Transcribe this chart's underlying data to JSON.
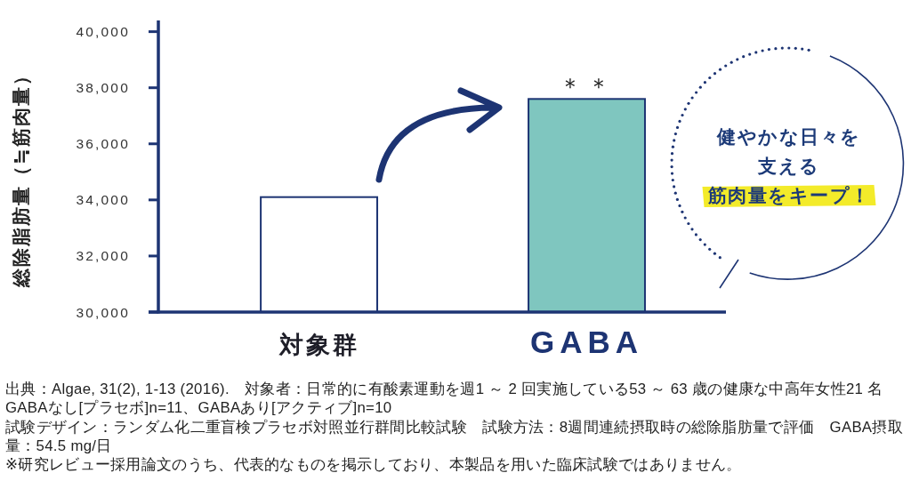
{
  "chart_data": {
    "type": "bar",
    "ylabel": "総除脂肪量（≒筋肉量）",
    "categories": [
      "対象群",
      "GABA"
    ],
    "values": [
      34100,
      37600
    ],
    "colors": [
      "#ffffff",
      "#7fc6bf"
    ],
    "ylim": [
      30000,
      40400
    ],
    "yticks": [
      {
        "value": 30000,
        "label": "30,000"
      },
      {
        "value": 32000,
        "label": "32,000"
      },
      {
        "value": 34000,
        "label": "34,000"
      },
      {
        "value": 36000,
        "label": "36,000"
      },
      {
        "value": 38000,
        "label": "38,000"
      },
      {
        "value": 40000,
        "label": "40,000"
      }
    ],
    "annotations": [
      {
        "text": "＊＊",
        "x": "GABA",
        "y": 37600
      },
      "健やかな日々を",
      "支える",
      "筋肉量をキープ！",
      "出典：Algae, 31(2), 1-13 (2016).　対象者：日常的に有酸素運動を週1 ～ 2 回実施している53 ～ 63 歳の健康な中高年女性21 名",
      "GABAなし[プラセボ]n=11、GABAあり[アクティブ]n=10",
      "試験デザイン：ランダム化二重盲検プラセボ対照並行群間比較試験　試験方法：8週間連続摂取時の総除脂肪量で評価　GABA摂取量：54.5 mg/日",
      "※研究レビュー採用論文のうち、代表的なものを掲示しており、本製品を用いた臨床試験ではありません。"
    ]
  }
}
